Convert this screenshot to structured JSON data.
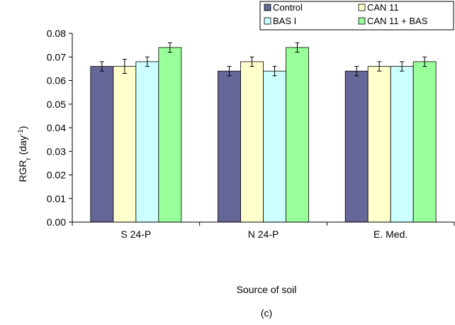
{
  "chart_data": {
    "type": "bar",
    "categories": [
      "S 24-P",
      "N 24-P",
      "E. Med."
    ],
    "series": [
      {
        "name": "Control",
        "color": "#666699",
        "values": [
          0.066,
          0.064,
          0.064
        ],
        "errors": [
          0.002,
          0.002,
          0.002
        ]
      },
      {
        "name": "CAN 11",
        "color": "#FFFFCC",
        "values": [
          0.066,
          0.068,
          0.066
        ],
        "errors": [
          0.003,
          0.002,
          0.002
        ]
      },
      {
        "name": "BAS I",
        "color": "#CCFFFF",
        "values": [
          0.068,
          0.064,
          0.066
        ],
        "errors": [
          0.002,
          0.002,
          0.002
        ]
      },
      {
        "name": "CAN 11 + BAS",
        "color": "#99FF99",
        "values": [
          0.074,
          0.074,
          0.068
        ],
        "errors": [
          0.002,
          0.002,
          0.002
        ]
      }
    ],
    "ylabel": {
      "main": "RGR",
      "sub": "r",
      "unit": " (day",
      "sup": "-1",
      "close": ")"
    },
    "xlabel": "Source of soil",
    "ylim": [
      0,
      0.08
    ],
    "yticks": [
      "0.00",
      "0.01",
      "0.02",
      "0.03",
      "0.04",
      "0.05",
      "0.06",
      "0.07",
      "0.08"
    ],
    "grid": false,
    "legend_position": "top-right"
  },
  "caption": "(c)"
}
